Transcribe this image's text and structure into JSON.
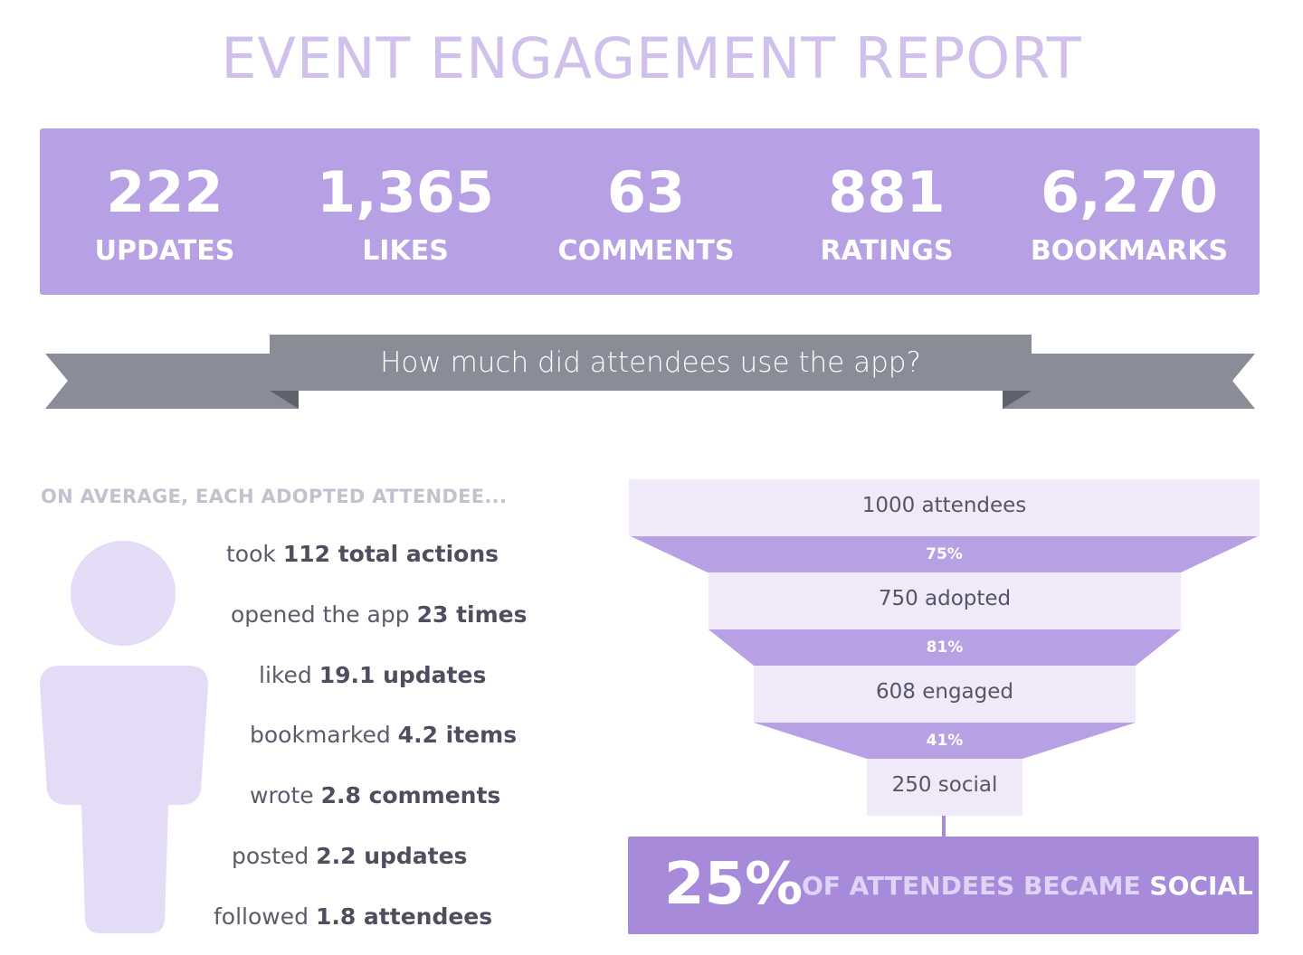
{
  "title": "EVENT ENGAGEMENT REPORT",
  "stats": [
    {
      "value": "222",
      "label": "UPDATES"
    },
    {
      "value": "1,365",
      "label": "LIKES"
    },
    {
      "value": "63",
      "label": "COMMENTS"
    },
    {
      "value": "881",
      "label": "RATINGS"
    },
    {
      "value": "6,270",
      "label": "BOOKMARKS"
    }
  ],
  "banner": {
    "text": "How much did attendees use the app?"
  },
  "average": {
    "heading": "ON AVERAGE, EACH ADOPTED ATTENDEE...",
    "actions": [
      {
        "prefix": "took ",
        "value": "112 total actions"
      },
      {
        "prefix": "opened the app ",
        "value": "23 times"
      },
      {
        "prefix": "liked ",
        "value": "19.1 updates"
      },
      {
        "prefix": "bookmarked ",
        "value": "4.2 items"
      },
      {
        "prefix": "wrote ",
        "value": "2.8 comments"
      },
      {
        "prefix": "posted ",
        "value": "2.2 updates"
      },
      {
        "prefix": "followed ",
        "value": "1.8 attendees"
      }
    ]
  },
  "funnel": {
    "stages": [
      "1000 attendees",
      "750 adopted",
      "608 engaged",
      "250 social"
    ],
    "conversions": [
      "75%",
      "81%",
      "41%"
    ]
  },
  "summary": {
    "percent": "25%",
    "text": "OF ATTENDEES BECAME ",
    "highlight": "SOCIAL"
  },
  "colors": {
    "title": "#d0c0ec",
    "stats_bg": "#b7a0e4",
    "banner": "#8a8d97",
    "funnel_stage": "#efe9fa",
    "funnel_conversion": "#b8a0e4",
    "summary_bg": "#a88ada",
    "person": "#e4dcf6"
  }
}
